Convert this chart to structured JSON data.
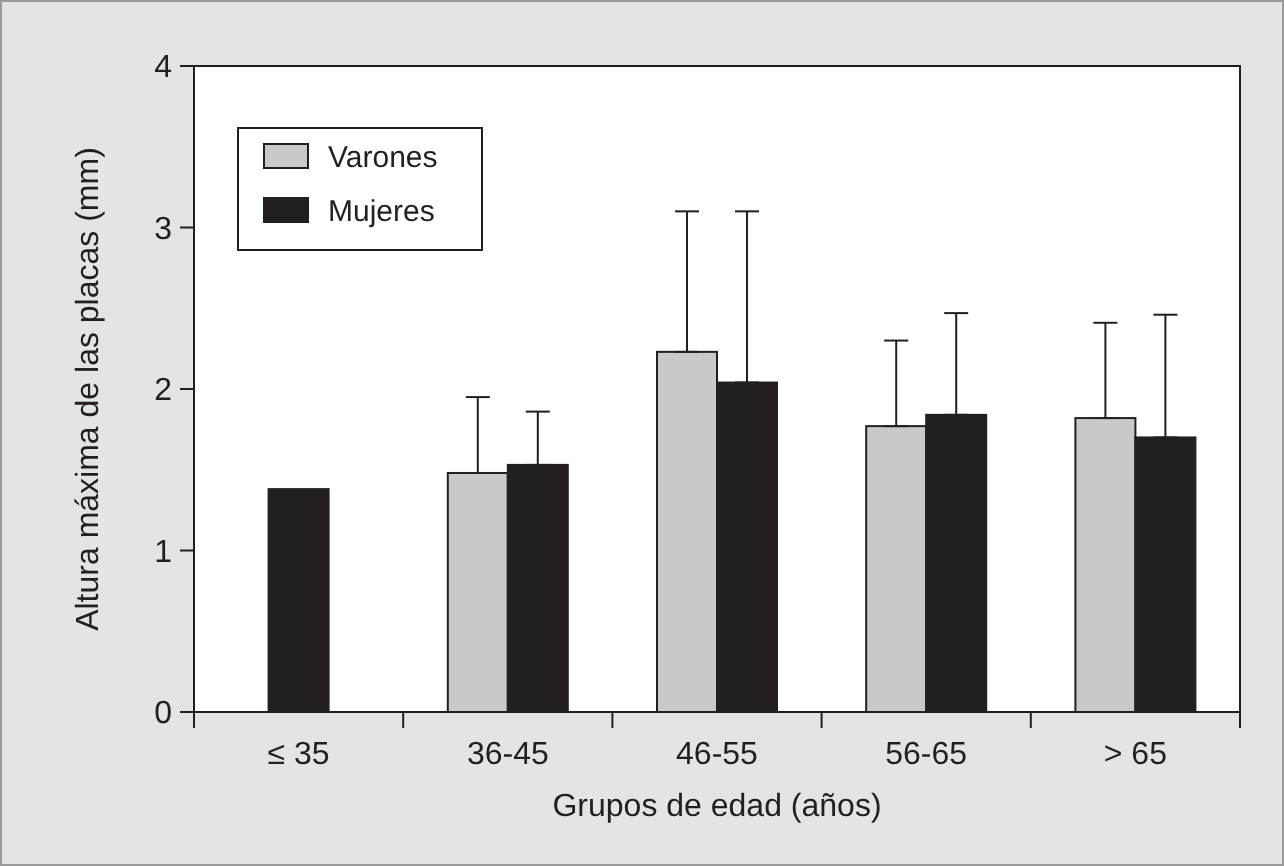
{
  "chart_data": {
    "type": "bar",
    "xlabel": "Grupos de edad (años)",
    "ylabel": "Altura máxima de las placas (mm)",
    "categories": [
      "≤ 35",
      "36-45",
      "46-55",
      "56-65",
      "> 65"
    ],
    "series": [
      {
        "name": "Varones",
        "color": "#c8c9cb",
        "values": [
          null,
          1.48,
          2.23,
          1.77,
          1.82
        ],
        "errors": [
          null,
          [
            1.48,
            1.95
          ],
          [
            2.23,
            3.1
          ],
          [
            1.77,
            2.3
          ],
          [
            1.82,
            2.41
          ]
        ]
      },
      {
        "name": "Mujeres",
        "color": "#231f20",
        "values": [
          1.38,
          1.53,
          2.04,
          1.84,
          1.7
        ],
        "errors": [
          null,
          [
            1.53,
            1.86
          ],
          [
            2.04,
            3.1
          ],
          [
            1.84,
            2.47
          ],
          [
            1.7,
            2.46
          ]
        ]
      }
    ],
    "ylim": [
      0,
      4
    ],
    "yticks": [
      0,
      1,
      2,
      3,
      4
    ],
    "grid": false,
    "legend": "top left"
  }
}
